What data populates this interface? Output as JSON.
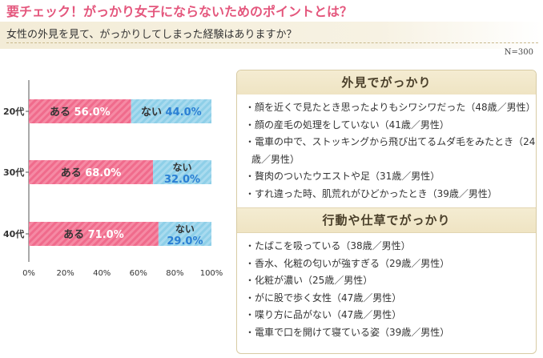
{
  "title": "要チェック！がっかり女子にならないためのポイントとは？",
  "question": "女性の外見を見て、がっかりしてしまった経験はありますか？",
  "sample_size": "N=300",
  "chart_data": {
    "type": "bar",
    "orientation": "horizontal",
    "stacked": true,
    "categories": [
      "20代",
      "30代",
      "40代"
    ],
    "series": [
      {
        "name": "ある",
        "values": [
          56.0,
          68.0,
          71.0
        ],
        "color": "#f06b8c"
      },
      {
        "name": "ない",
        "values": [
          44.0,
          32.0,
          29.0
        ],
        "color": "#8ecfe8"
      }
    ],
    "value_labels": {
      "ある": [
        "56.0%",
        "68.0%",
        "71.0%"
      ],
      "ない": [
        "44.0%",
        "32.0%",
        "29.0%"
      ]
    },
    "xlim": [
      0,
      100
    ],
    "xticks": [
      "0%",
      "20%",
      "40%",
      "60%",
      "80%",
      "100%"
    ],
    "grid": false,
    "legend": "none"
  },
  "panel": {
    "appearance": {
      "heading": "外見でがっかり",
      "items": [
        "・顔を近くで見たとき思ったよりもシワシワだった（48歳／男性）",
        "・顔の産毛の処理をしていない（41歳／男性）",
        "・電車の中で、ストッキングから飛び出てるムダ毛をみたとき（24",
        "歳／男性）",
        "・贅肉のついたウエストや足（31歳／男性）",
        "・すれ違った時、肌荒れがひどかったとき（39歳／男性）"
      ]
    },
    "behavior": {
      "heading": "行動や仕草でがっかり",
      "items": [
        "・たばこを吸っている（38歳／男性）",
        "・香水、化粧の匂いが強すぎる（29歳／男性）",
        "・化粧が濃い（25歳／男性）",
        "・がに股で歩く女性（47歳／男性）",
        "・喋り方に品がない（47歳／男性）",
        "・電車で口を開けて寝ている姿（39歳／男性）"
      ]
    }
  }
}
